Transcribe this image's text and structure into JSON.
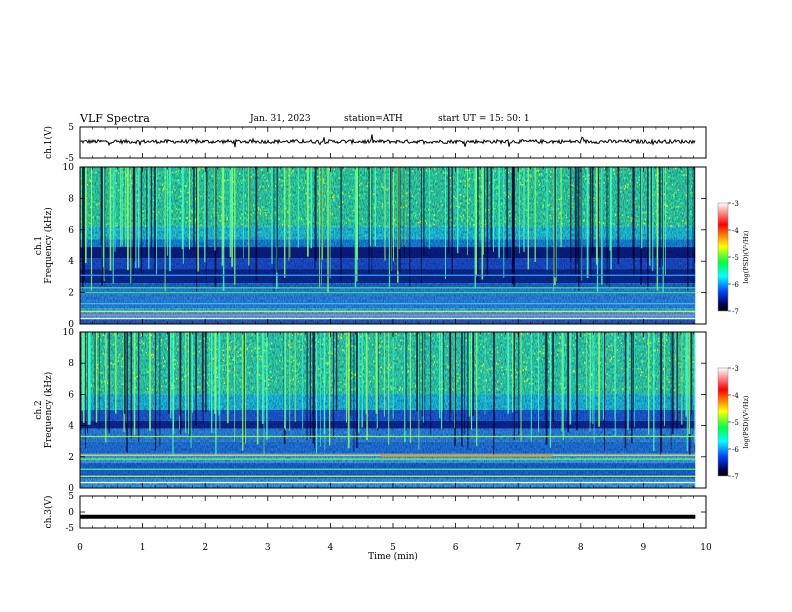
{
  "header": {
    "title": "VLF  Spectra",
    "date": "Jan.  31,  2023",
    "station": "station=ATH",
    "start": "start  UT  =    15: 50: 1"
  },
  "colors": {
    "colormap": [
      "#ffffff",
      "#ff0000",
      "#ffff00",
      "#00ff40",
      "#00ffff",
      "#0040ff",
      "#000040",
      "#000000"
    ],
    "trace": "#000000",
    "frame": "#000000"
  },
  "chart_data": [
    {
      "type": "line",
      "name": "ch1-waveform",
      "ylabel": "ch.1(V)",
      "ylim": [
        -5,
        5
      ],
      "xlim": [
        0,
        10
      ],
      "yticks": [
        "5",
        "-5"
      ],
      "description_values": {
        "mean_V": 0.3,
        "noise_V": 0.6,
        "x_end_min": 9.83
      }
    },
    {
      "type": "heatmap",
      "name": "ch1-spectrogram",
      "ylabel": "ch.1\nFrequency  (kHz)",
      "ylim": [
        0,
        10
      ],
      "xlim": [
        0,
        10
      ],
      "x_end_min": 9.83,
      "yticks": [
        "0",
        "2",
        "4",
        "6",
        "8",
        "10"
      ],
      "colorbar": {
        "label": "log(PSD)(V²/Hz)",
        "range": [
          -7,
          -3
        ],
        "ticks": [
          "-3",
          "-4",
          "-5",
          "-6",
          "-7"
        ]
      }
    },
    {
      "type": "heatmap",
      "name": "ch2-spectrogram",
      "ylabel": "ch.2\nFrequency  (kHz)",
      "ylim": [
        0,
        10
      ],
      "xlim": [
        0,
        10
      ],
      "x_end_min": 9.83,
      "yticks": [
        "0",
        "2",
        "4",
        "6",
        "8",
        "10"
      ],
      "colorbar": {
        "label": "log(PSD)(V²/Hz)",
        "range": [
          -7,
          -3
        ],
        "ticks": [
          "-3",
          "-4",
          "-5",
          "-6",
          "-7"
        ]
      }
    },
    {
      "type": "line",
      "name": "ch3-waveform",
      "ylabel": "ch.3(V)",
      "ylim": [
        -5,
        5
      ],
      "xlim": [
        0,
        10
      ],
      "yticks": [
        "5",
        "0",
        "-5"
      ],
      "description_values": {
        "constant_V": -1.5,
        "x_end_min": 9.83
      }
    }
  ],
  "xaxis": {
    "label": "Time  (min)",
    "ticks": [
      "0",
      "1",
      "2",
      "3",
      "4",
      "5",
      "6",
      "7",
      "8",
      "9",
      "10"
    ],
    "range": [
      0,
      10
    ]
  }
}
